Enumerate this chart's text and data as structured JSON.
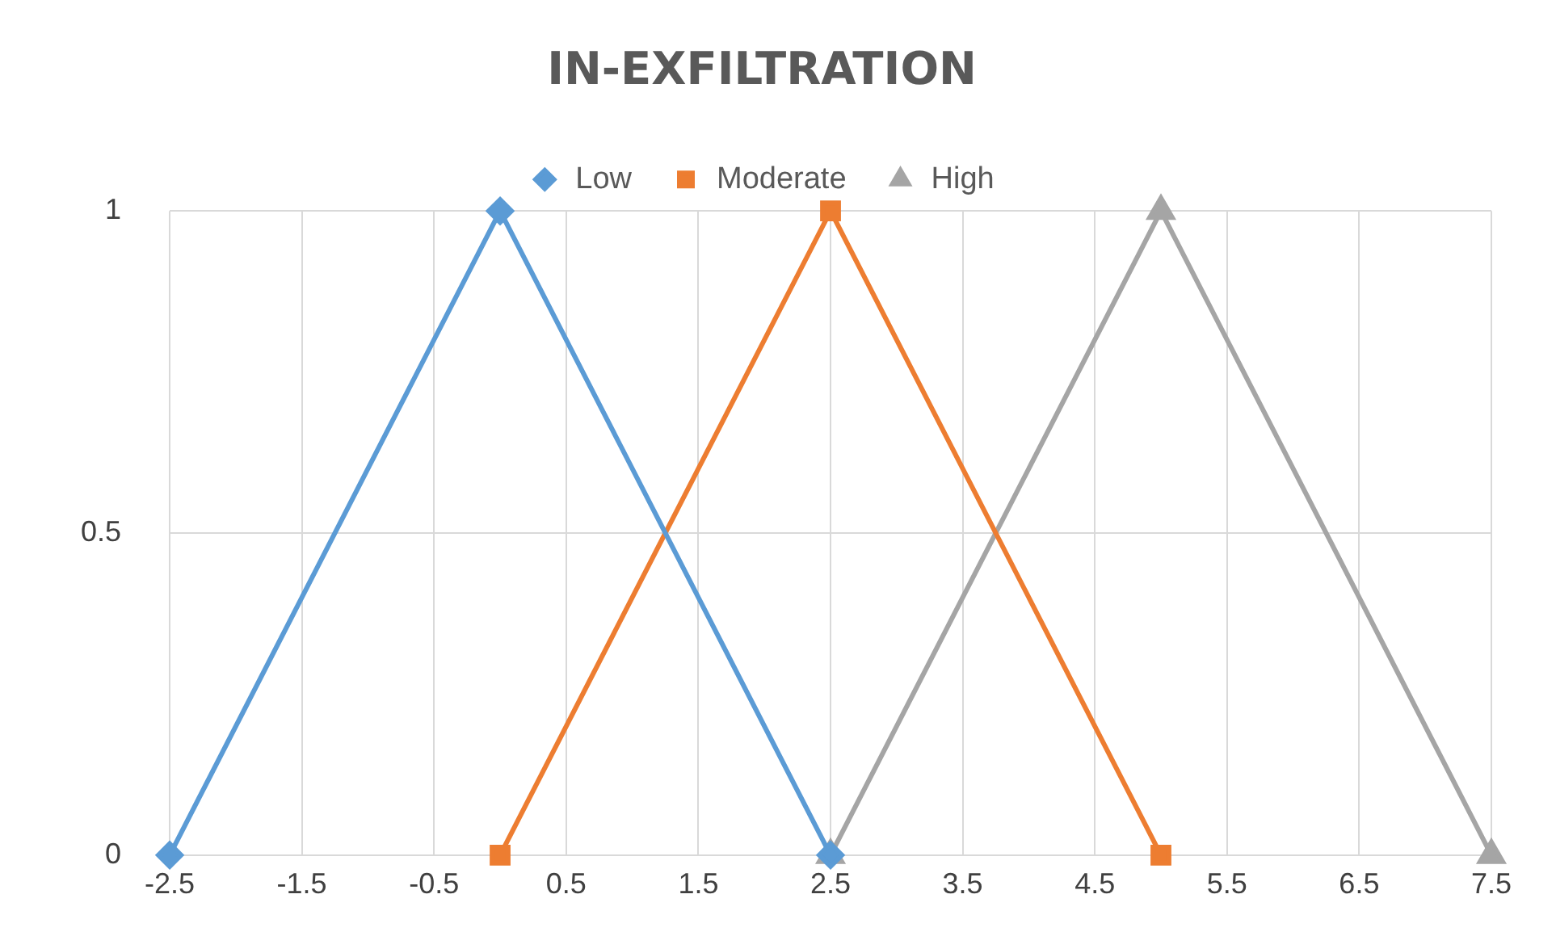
{
  "chart_data": {
    "type": "line",
    "title": "IN-EXFILTRATION",
    "series": [
      {
        "name": "Low",
        "color": "#5b9bd5",
        "marker": "diamond",
        "x": [
          -2.5,
          0,
          2.5
        ],
        "values": [
          0,
          1,
          0
        ]
      },
      {
        "name": "Moderate",
        "color": "#ed7d31",
        "marker": "square",
        "x": [
          0,
          2.5,
          5
        ],
        "values": [
          0,
          1,
          0
        ]
      },
      {
        "name": "High",
        "color": "#a5a5a5",
        "marker": "triangle",
        "x": [
          2.5,
          5,
          7.5
        ],
        "values": [
          0,
          1,
          0
        ]
      }
    ],
    "xlim": [
      -2.5,
      7.5
    ],
    "xticks": [
      -2.5,
      -1.5,
      -0.5,
      0.5,
      1.5,
      2.5,
      3.5,
      4.5,
      5.5,
      6.5,
      7.5
    ],
    "ylim": [
      0,
      1
    ],
    "yticks": [
      0,
      0.5,
      1
    ],
    "grid": true,
    "legend": "top",
    "line_style": "solid"
  }
}
